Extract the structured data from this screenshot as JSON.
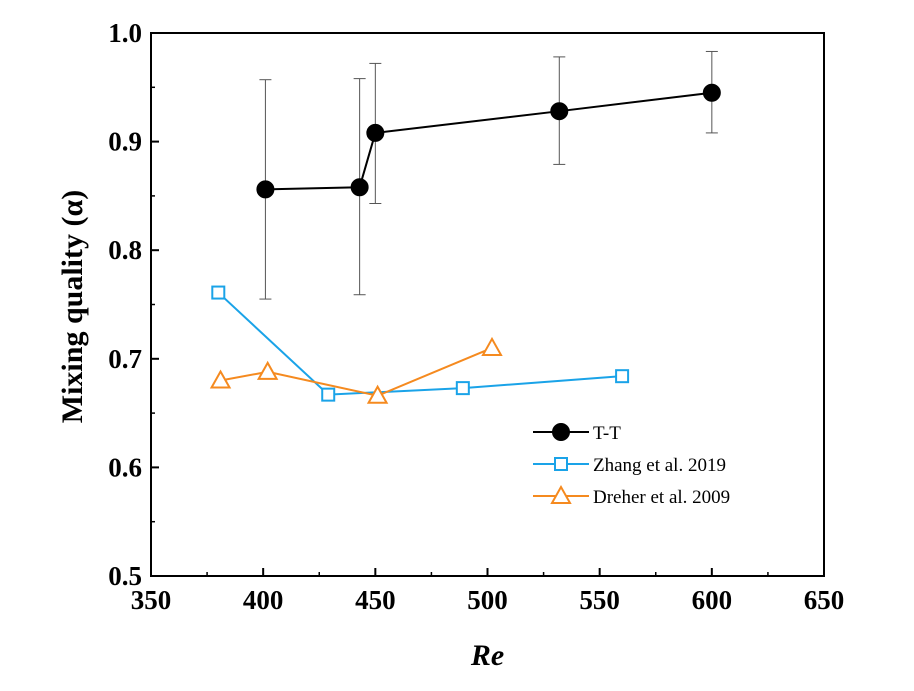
{
  "chart_data": {
    "type": "line",
    "xlabel": "Re",
    "ylabel": "Mixing quality (α)",
    "xlim": [
      350,
      650
    ],
    "ylim": [
      0.5,
      1.0
    ],
    "xticks": [
      350,
      400,
      450,
      500,
      550,
      600,
      650
    ],
    "yticks": [
      0.5,
      0.6,
      0.7,
      0.8,
      0.9,
      1.0
    ],
    "xtick_labels": [
      "350",
      "400",
      "450",
      "500",
      "550",
      "600",
      "650"
    ],
    "ytick_labels": [
      "0.5",
      "0.6",
      "0.7",
      "0.8",
      "0.9",
      "1.0"
    ],
    "grid": false,
    "legend_position": "lower-right",
    "series": [
      {
        "name": "T-T",
        "color": "#000000",
        "marker": "filled-circle",
        "x": [
          401,
          443,
          450,
          532,
          600
        ],
        "y": [
          0.856,
          0.858,
          0.908,
          0.928,
          0.945
        ],
        "err_low": [
          0.755,
          0.759,
          0.843,
          0.879,
          0.908
        ],
        "err_high": [
          0.957,
          0.958,
          0.972,
          0.978,
          0.983
        ]
      },
      {
        "name": "Zhang et al. 2019",
        "color": "#1aa3e8",
        "marker": "open-square",
        "x": [
          380,
          429,
          489,
          560
        ],
        "y": [
          0.761,
          0.667,
          0.673,
          0.684
        ]
      },
      {
        "name": "Dreher et al. 2009",
        "color": "#f58a1f",
        "marker": "open-triangle",
        "x": [
          381,
          402,
          451,
          502
        ],
        "y": [
          0.68,
          0.688,
          0.666,
          0.71
        ]
      }
    ]
  }
}
